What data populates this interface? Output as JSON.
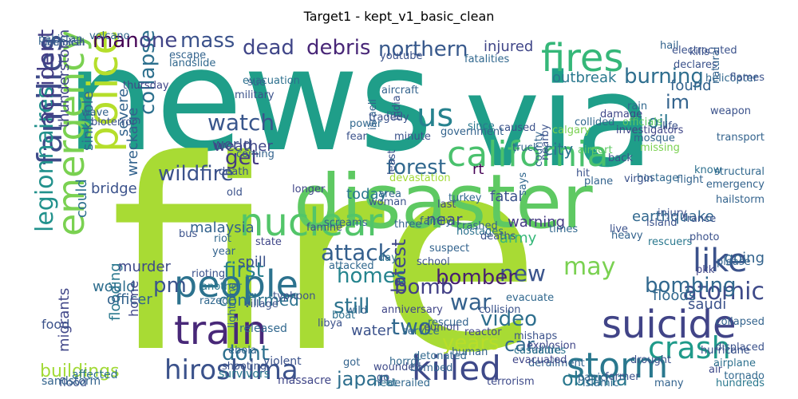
{
  "title": "Target1 - kept_v1_basic_clean",
  "words": [
    {
      "text": "news",
      "color": "#1f9e89"
    },
    {
      "text": "fire",
      "color": "#a8db34"
    },
    {
      "text": "via",
      "color": "#1f9e89"
    },
    {
      "text": "disaster",
      "color": "#5ec962"
    },
    {
      "text": "california",
      "color": "#4ac16d"
    },
    {
      "text": "fires",
      "color": "#35b779"
    },
    {
      "text": "us",
      "color": "#26828e"
    },
    {
      "text": "police",
      "color": "#b5de2b"
    },
    {
      "text": "emergency",
      "color": "#7ad151"
    },
    {
      "text": "families",
      "color": "#3e4a89"
    },
    {
      "text": "nuclear",
      "color": "#52c569"
    },
    {
      "text": "people",
      "color": "#2c728e"
    },
    {
      "text": "train",
      "color": "#482878"
    },
    {
      "text": "hiroshima",
      "color": "#3b528b"
    },
    {
      "text": "killed",
      "color": "#3e4989"
    },
    {
      "text": "storm",
      "color": "#2a788e"
    },
    {
      "text": "suicide",
      "color": "#414487"
    },
    {
      "text": "crash",
      "color": "#1f9a8a"
    },
    {
      "text": "wildfire",
      "color": "#3b528b"
    },
    {
      "text": "watch",
      "color": "#39568c"
    },
    {
      "text": "get",
      "color": "#443a83"
    },
    {
      "text": "forest",
      "color": "#31688e"
    },
    {
      "text": "like",
      "color": "#3b528b"
    },
    {
      "text": "legionnaires",
      "color": "#21918c"
    },
    {
      "text": "accident",
      "color": "#433e85"
    },
    {
      "text": "collapse",
      "color": "#2d708e"
    },
    {
      "text": "dead",
      "color": "#404688"
    },
    {
      "text": "debris",
      "color": "#482677"
    },
    {
      "text": "northern",
      "color": "#38598c"
    },
    {
      "text": "man",
      "color": "#440154"
    },
    {
      "text": "one",
      "color": "#414487"
    },
    {
      "text": "mass",
      "color": "#3b528b"
    },
    {
      "text": "burning",
      "color": "#2e6e8e"
    },
    {
      "text": "im",
      "color": "#33638d"
    },
    {
      "text": "oil",
      "color": "#2a768e"
    },
    {
      "text": "attack",
      "color": "#345f8d"
    },
    {
      "text": "new",
      "color": "#3a548c"
    },
    {
      "text": "homes",
      "color": "#25848e"
    },
    {
      "text": "bomber",
      "color": "#481f70"
    },
    {
      "text": "war",
      "color": "#34618d"
    },
    {
      "text": "may",
      "color": "#7ad151"
    },
    {
      "text": "atomic",
      "color": "#3e4a89"
    },
    {
      "text": "bombing",
      "color": "#31688e"
    },
    {
      "text": "still",
      "color": "#2c738e"
    },
    {
      "text": "bomb",
      "color": "#424086"
    },
    {
      "text": "first",
      "color": "#287d8e"
    },
    {
      "text": "pm",
      "color": "#3a548c"
    },
    {
      "text": "video",
      "color": "#2e6f8e"
    },
    {
      "text": "latest",
      "color": "#3f4788"
    },
    {
      "text": "two",
      "color": "#31688e"
    },
    {
      "text": "years",
      "color": "#b8de29"
    },
    {
      "text": "car",
      "color": "#31688e"
    },
    {
      "text": "japan",
      "color": "#2e6f8e"
    },
    {
      "text": "obama",
      "color": "#2a788e"
    },
    {
      "text": "dont",
      "color": "#2d708e"
    },
    {
      "text": "buildings",
      "color": "#a2da37"
    },
    {
      "text": "floods",
      "color": "#31688e"
    },
    {
      "text": "near",
      "color": "#3e4a89"
    },
    {
      "text": "city",
      "color": "#2c728e"
    },
    {
      "text": "world",
      "color": "#3b528b"
    },
    {
      "text": "weather",
      "color": "#404688"
    },
    {
      "text": "today",
      "color": "#2a788e"
    },
    {
      "text": "malaysia",
      "color": "#33638d"
    },
    {
      "text": "rt",
      "color": "#440154"
    },
    {
      "text": "fatal",
      "color": "#3b528b"
    },
    {
      "text": "found",
      "color": "#33638d"
    },
    {
      "text": "outbreak",
      "color": "#2a788e"
    },
    {
      "text": "injured",
      "color": "#404688"
    },
    {
      "text": "severe",
      "color": "#33638d"
    },
    {
      "text": "spill",
      "color": "#3b528b"
    },
    {
      "text": "confirmed",
      "color": "#2c728e"
    },
    {
      "text": "water",
      "color": "#3b528b"
    },
    {
      "text": "army",
      "color": "#35b779"
    },
    {
      "text": "earthquake",
      "color": "#31688e"
    },
    {
      "text": "warning",
      "color": "#443983"
    },
    {
      "text": "going",
      "color": "#33638d"
    },
    {
      "text": "saudi",
      "color": "#3b528b"
    },
    {
      "text": "thunderstorm",
      "color": "#404688"
    },
    {
      "text": "sinkhole",
      "color": "#31688e"
    },
    {
      "text": "wreckage",
      "color": "#33638d"
    },
    {
      "text": "could",
      "color": "#2d708e"
    },
    {
      "text": "bridge",
      "color": "#3b528b"
    },
    {
      "text": "migrants",
      "color": "#404688"
    },
    {
      "text": "flooding",
      "color": "#2a788e"
    },
    {
      "text": "murder",
      "color": "#3e4a89"
    },
    {
      "text": "officer",
      "color": "#33638d"
    },
    {
      "text": "would",
      "color": "#2e6e8e"
    },
    {
      "text": "food",
      "color": "#3b528b"
    },
    {
      "text": "home",
      "color": "#404688"
    },
    {
      "text": "released",
      "color": "#31688e"
    },
    {
      "text": "affected",
      "color": "#2c728e"
    },
    {
      "text": "flood",
      "color": "#3b528b"
    },
    {
      "text": "sandstorm",
      "color": "#33638d"
    },
    {
      "text": "survivors",
      "color": "#2a788e"
    },
    {
      "text": "violent",
      "color": "#3b528b"
    },
    {
      "text": "massacre",
      "color": "#404688"
    },
    {
      "text": "derailed",
      "color": "#31688e"
    },
    {
      "text": "wounded",
      "color": "#3e4a89"
    },
    {
      "text": "heat",
      "color": "#2d708e"
    },
    {
      "text": "go",
      "color": "#3b528b"
    },
    {
      "text": "got",
      "color": "#33638d"
    },
    {
      "text": "service",
      "color": "#31688e"
    },
    {
      "text": "explosion",
      "color": "#404688"
    },
    {
      "text": "derailment",
      "color": "#33638d"
    },
    {
      "text": "hundreds",
      "color": "#2a788e"
    },
    {
      "text": "hurricane",
      "color": "#3b528b"
    },
    {
      "text": "failure",
      "color": "#33638d"
    },
    {
      "text": "casualties",
      "color": "#2c728e"
    },
    {
      "text": "evacuated",
      "color": "#404688"
    },
    {
      "text": "evacuate",
      "color": "#31688e"
    },
    {
      "text": "drought",
      "color": "#3b528b"
    },
    {
      "text": "airplane",
      "color": "#2d708e"
    },
    {
      "text": "many",
      "color": "#33638d"
    },
    {
      "text": "air",
      "color": "#3e4a89"
    },
    {
      "text": "rescuers",
      "color": "#2a788e"
    },
    {
      "text": "island",
      "color": "#3b528b"
    },
    {
      "text": "please",
      "color": "#33638d"
    },
    {
      "text": "pkk",
      "color": "#404688"
    },
    {
      "text": "times",
      "color": "#31688e"
    },
    {
      "text": "hostages",
      "color": "#2c728e"
    },
    {
      "text": "deaths",
      "color": "#3b528b"
    },
    {
      "text": "suspect",
      "color": "#33638d"
    },
    {
      "text": "day",
      "color": "#2d708e"
    },
    {
      "text": "school",
      "color": "#3b528b"
    },
    {
      "text": "anniversary",
      "color": "#404688"
    },
    {
      "text": "attacked",
      "color": "#31688e"
    },
    {
      "text": "typhoon",
      "color": "#3b528b"
    },
    {
      "text": "year",
      "color": "#33638d"
    },
    {
      "text": "another",
      "color": "#2a788e"
    },
    {
      "text": "bus",
      "color": "#3b528b"
    },
    {
      "text": "state",
      "color": "#404688"
    },
    {
      "text": "razed",
      "color": "#31688e"
    },
    {
      "text": "old",
      "color": "#3b528b"
    },
    {
      "text": "wild",
      "color": "#33638d"
    },
    {
      "text": "boat",
      "color": "#2d708e"
    },
    {
      "text": "reunion",
      "color": "#404688"
    },
    {
      "text": "terrorism",
      "color": "#3e4a89"
    },
    {
      "text": "mp",
      "color": "#31688e"
    },
    {
      "text": "india",
      "color": "#3b528b"
    },
    {
      "text": "israeli",
      "color": "#33638d"
    },
    {
      "text": "since",
      "color": "#2a788e"
    },
    {
      "text": "caused",
      "color": "#3b528b"
    },
    {
      "text": "calgary",
      "color": "#7ad151"
    },
    {
      "text": "airport",
      "color": "#5ec962"
    },
    {
      "text": "hit",
      "color": "#3b528b"
    },
    {
      "text": "plane",
      "color": "#33638d"
    },
    {
      "text": "rain",
      "color": "#31688e"
    },
    {
      "text": "damage",
      "color": "#404688"
    },
    {
      "text": "life",
      "color": "#3b528b"
    },
    {
      "text": "mosque",
      "color": "#33638d"
    },
    {
      "text": "officials",
      "color": "#5ec962"
    },
    {
      "text": "investigators",
      "color": "#404688"
    },
    {
      "text": "declares",
      "color": "#3b528b"
    },
    {
      "text": "hail",
      "color": "#33638d"
    },
    {
      "text": "kills",
      "color": "#3b528b"
    },
    {
      "text": "helicopter",
      "color": "#31688e"
    },
    {
      "text": "flames",
      "color": "#3b528b"
    },
    {
      "text": "natural",
      "color": "#33638d"
    },
    {
      "text": "know",
      "color": "#2d708e"
    },
    {
      "text": "missing",
      "color": "#7ad151"
    },
    {
      "text": "back",
      "color": "#3b528b"
    },
    {
      "text": "truck",
      "color": "#33638d"
    },
    {
      "text": "turkey",
      "color": "#31688e"
    },
    {
      "text": "least",
      "color": "#3b528b"
    },
    {
      "text": "last",
      "color": "#404688"
    },
    {
      "text": "area",
      "color": "#33638d"
    },
    {
      "text": "devastation",
      "color": "#a2da37"
    },
    {
      "text": "evacuation",
      "color": "#2d708e"
    },
    {
      "text": "military",
      "color": "#3b528b"
    },
    {
      "text": "crashed",
      "color": "#33638d"
    },
    {
      "text": "says",
      "color": "#31688e"
    },
    {
      "text": "live",
      "color": "#3b528b"
    },
    {
      "text": "heavy",
      "color": "#33638d"
    },
    {
      "text": "longer",
      "color": "#404688"
    },
    {
      "text": "libya",
      "color": "#3b528b"
    },
    {
      "text": "pakistan",
      "color": "#33638d"
    },
    {
      "text": "fatalities",
      "color": "#31688e"
    },
    {
      "text": "youtube",
      "color": "#3b528b"
    },
    {
      "text": "transport",
      "color": "#33638d"
    },
    {
      "text": "france",
      "color": "#3b528b"
    },
    {
      "text": "flight",
      "color": "#33638d"
    },
    {
      "text": "photo",
      "color": "#3b528b"
    },
    {
      "text": "islamic",
      "color": "#31688e"
    },
    {
      "text": "government",
      "color": "#33638d"
    },
    {
      "text": "minute",
      "color": "#3b528b"
    },
    {
      "text": "thursday",
      "color": "#404688"
    },
    {
      "text": "lightning",
      "color": "#33638d"
    },
    {
      "text": "tragedy",
      "color": "#3b528b"
    },
    {
      "text": "escape",
      "color": "#33638d"
    },
    {
      "text": "hostage",
      "color": "#31688e"
    },
    {
      "text": "virgin",
      "color": "#3b528b"
    },
    {
      "text": "county",
      "color": "#33638d"
    },
    {
      "text": "nearby",
      "color": "#3b528b"
    },
    {
      "text": "collided",
      "color": "#31688e"
    },
    {
      "text": "rescued",
      "color": "#33638d"
    },
    {
      "text": "mishaps",
      "color": "#3b528b"
    },
    {
      "text": "reactor",
      "color": "#404688"
    },
    {
      "text": "human",
      "color": "#33638d"
    },
    {
      "text": "collision",
      "color": "#3b528b"
    },
    {
      "text": "detonated",
      "color": "#31688e"
    },
    {
      "text": "panic",
      "color": "#33638d"
    },
    {
      "text": "former",
      "color": "#3b528b"
    },
    {
      "text": "bombed",
      "color": "#33638d"
    },
    {
      "text": "horror",
      "color": "#31688e"
    },
    {
      "text": "rioting",
      "color": "#3b528b"
    },
    {
      "text": "hailstorm",
      "color": "#33638d"
    },
    {
      "text": "electrocuted",
      "color": "#3b528b"
    },
    {
      "text": "landslide",
      "color": "#31688e"
    },
    {
      "text": "coming",
      "color": "#33638d"
    },
    {
      "text": "death",
      "color": "#3b528b"
    },
    {
      "text": "sue",
      "color": "#33638d"
    },
    {
      "text": "fear",
      "color": "#3b528b"
    },
    {
      "text": "power",
      "color": "#31688e"
    },
    {
      "text": "three",
      "color": "#33638d"
    },
    {
      "text": "woman",
      "color": "#3b528b"
    },
    {
      "text": "family",
      "color": "#33638d"
    },
    {
      "text": "weapon",
      "color": "#3b528b"
    },
    {
      "text": "structural",
      "color": "#31688e"
    },
    {
      "text": "emergency",
      "color": "#33638d"
    },
    {
      "text": "injury",
      "color": "#3b528b"
    },
    {
      "text": "collapsed",
      "color": "#33638d"
    },
    {
      "text": "displaced",
      "color": "#3b528b"
    },
    {
      "text": "tornado",
      "color": "#31688e"
    },
    {
      "text": "wave",
      "color": "#33638d"
    },
    {
      "text": "bioterror",
      "color": "#3b528b"
    },
    {
      "text": "ebola",
      "color": "#33638d"
    },
    {
      "text": "shooting",
      "color": "#3b528b"
    },
    {
      "text": "volcano",
      "color": "#31688e"
    },
    {
      "text": "aircraft",
      "color": "#33638d"
    },
    {
      "text": "famine",
      "color": "#3b528b"
    },
    {
      "text": "screams",
      "color": "#33638d"
    },
    {
      "text": "village",
      "color": "#3b528b"
    },
    {
      "text": "riot",
      "color": "#31688e"
    },
    {
      "text": "chemical",
      "color": "#33638d"
    },
    {
      "text": "demolish",
      "color": "#3b528b"
    }
  ]
}
